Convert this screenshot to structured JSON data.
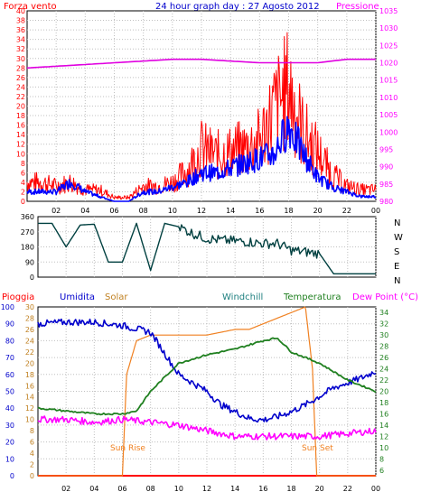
{
  "colors": {
    "wind": "#ff0000",
    "wind_gust_bg": "#ff0000",
    "wind_avg": "#0000ff",
    "pressure": "#e000e0",
    "direction": "#004040",
    "humidity": "#0000cc",
    "solar": "#f08020",
    "windchill": "#208020",
    "temperature": "#208020",
    "dewpoint": "#ff00ff",
    "rain": "#ff0000",
    "grid": "#c0c0c0",
    "frame": "#000000",
    "left_axis": "#ff0000",
    "right_axis_pressure": "#ff00ff",
    "right_axis_temp": "#208020",
    "title": "#0000cc"
  },
  "header": {
    "left": "Forza vento",
    "title": "24 hour graph day : 27 Agosto 2012",
    "right": "Pressione"
  },
  "panel_top_ticks_left": [
    "40",
    "38",
    "36",
    "34",
    "32",
    "30",
    "28",
    "26",
    "24",
    "22",
    "20",
    "18",
    "16",
    "14",
    "12",
    "10",
    "8",
    "6",
    "4",
    "2",
    "0"
  ],
  "panel_top_ticks_right": [
    "1035",
    "1030",
    "1025",
    "1020",
    "1015",
    "1010",
    "1005",
    "1000",
    "995",
    "990",
    "985",
    "980"
  ],
  "x_ticks": [
    "02",
    "04",
    "06",
    "08",
    "10",
    "12",
    "14",
    "16",
    "18",
    "20",
    "22",
    "00"
  ],
  "panel_dir_ticks": [
    "360",
    "270",
    "180",
    "90",
    "0"
  ],
  "panel_dir_labels": [
    "N",
    "W",
    "S",
    "E",
    "N"
  ],
  "legend_bottom": {
    "rain": "Pioggia",
    "humidity": "Umidita",
    "solar": "Solar",
    "windchill": "Windchill",
    "temperature": "Temperatura",
    "dewpoint": "Dew Point (°C)"
  },
  "panel_bottom_ticks_humidity": [
    "100",
    "90",
    "80",
    "70",
    "60",
    "50",
    "40",
    "30",
    "20",
    "10",
    "0"
  ],
  "panel_bottom_ticks_solar": [
    "30",
    "28",
    "26",
    "24",
    "22",
    "20",
    "18",
    "16",
    "14",
    "12",
    "10",
    "8",
    "6",
    "4",
    "2",
    "0"
  ],
  "panel_bottom_ticks_temp": [
    "34",
    "32",
    "30",
    "28",
    "26",
    "24",
    "22",
    "20",
    "18",
    "16",
    "14",
    "12",
    "10",
    "8",
    "6"
  ],
  "annotations": {
    "sunrise": "Sun Rise",
    "sunset": "Sun Set"
  },
  "chart_data": [
    {
      "type": "line",
      "title": "24 hour graph day : 27 Agosto 2012",
      "xlabel": "",
      "ylabel": "Forza vento",
      "x_ticks": [
        "02",
        "04",
        "06",
        "08",
        "10",
        "12",
        "14",
        "16",
        "18",
        "20",
        "22",
        "00"
      ],
      "ylim": [
        0,
        40
      ],
      "y2lim": [
        980,
        1035
      ],
      "series": [
        {
          "name": "Forza vento",
          "axis": "left",
          "x": [
            0,
            1,
            2,
            3,
            4,
            5,
            6,
            7,
            8,
            9,
            10,
            11,
            12,
            13,
            14,
            15,
            16,
            17,
            18,
            19,
            20,
            21,
            22,
            23,
            24
          ],
          "values": [
            5,
            5,
            4,
            5,
            3,
            3,
            1,
            1,
            4,
            4,
            5,
            8,
            14,
            12,
            13,
            14,
            16,
            24,
            30,
            18,
            13,
            7,
            4,
            3,
            3
          ]
        },
        {
          "name": "",
          "axis": "left",
          "x": [
            0,
            1,
            2,
            3,
            4,
            5,
            6,
            7,
            8,
            9,
            10,
            11,
            12,
            13,
            14,
            15,
            16,
            17,
            18,
            19,
            20,
            21,
            22,
            23,
            24
          ],
          "values": [
            2,
            2,
            2,
            4,
            2,
            1,
            0,
            0,
            2,
            2,
            3,
            4,
            6,
            6,
            7,
            8,
            9,
            10,
            16,
            10,
            5,
            3,
            2,
            1,
            1
          ]
        },
        {
          "name": "Pressione",
          "axis": "right",
          "x": [
            0,
            2,
            4,
            6,
            8,
            10,
            12,
            14,
            16,
            18,
            20,
            22,
            24
          ],
          "values": [
            1018.5,
            1019,
            1019.5,
            1020,
            1020.5,
            1021,
            1021,
            1020.5,
            1020,
            1020,
            1020,
            1021,
            1021
          ]
        }
      ]
    },
    {
      "type": "line",
      "title": "",
      "ylabel": "",
      "ylim": [
        0,
        360
      ],
      "y_tick_labels": [
        "360",
        "270",
        "180",
        "90",
        "0"
      ],
      "direction_labels": [
        "N",
        "W",
        "S",
        "E",
        "N"
      ],
      "series": [
        {
          "name": "",
          "x": [
            0,
            1,
            2,
            3,
            4,
            5,
            6,
            7,
            8,
            9,
            10,
            11,
            12,
            13,
            14,
            15,
            16,
            17,
            18,
            19,
            20,
            21,
            22,
            23,
            24
          ],
          "values": [
            320,
            320,
            180,
            310,
            315,
            90,
            90,
            320,
            40,
            320,
            300,
            260,
            230,
            220,
            215,
            210,
            200,
            200,
            160,
            150,
            140,
            20,
            20,
            20,
            20
          ]
        }
      ]
    },
    {
      "type": "line",
      "title": "",
      "ylabel": "Umidita",
      "ylim": [
        0,
        100
      ],
      "y_solar_lim": [
        0,
        30
      ],
      "y_temp_lim": [
        5,
        35
      ],
      "series": [
        {
          "name": "Umidita",
          "axis": "humidity",
          "x": [
            0,
            2,
            4,
            6,
            8,
            10,
            11,
            12,
            13,
            14,
            15,
            16,
            17,
            18,
            19,
            20,
            21,
            22,
            23,
            24
          ],
          "values": [
            90,
            91,
            91,
            89,
            85,
            60,
            55,
            50,
            42,
            38,
            34,
            33,
            35,
            38,
            42,
            47,
            52,
            55,
            58,
            62
          ]
        },
        {
          "name": "Solar",
          "axis": "solar",
          "x": [
            0,
            6,
            6.3,
            7,
            8,
            10,
            12,
            14,
            15,
            16,
            17,
            18,
            19,
            19.5,
            19.8,
            20,
            24
          ],
          "values": [
            0,
            0,
            18,
            24,
            25,
            25,
            25,
            26,
            26,
            27,
            28,
            29,
            30,
            19,
            0,
            0,
            0
          ]
        },
        {
          "name": "Temperatura",
          "axis": "temp",
          "x": [
            0,
            2,
            4,
            6,
            7,
            8,
            10,
            12,
            14,
            16,
            17,
            18,
            19,
            20,
            22,
            24
          ],
          "values": [
            17,
            16.5,
            16,
            16,
            16.5,
            20,
            25,
            26.5,
            27.5,
            29,
            29.5,
            27,
            26,
            25,
            22,
            20
          ]
        },
        {
          "name": "Dew Point (°C)",
          "axis": "temp",
          "x": [
            0,
            2,
            4,
            6,
            8,
            10,
            12,
            14,
            16,
            18,
            20,
            22,
            24
          ],
          "values": [
            15,
            15,
            14.5,
            15,
            14.5,
            14,
            13,
            12,
            12,
            12,
            12,
            12.5,
            13
          ]
        },
        {
          "name": "Pioggia",
          "axis": "humidity",
          "x": [
            0,
            24
          ],
          "values": [
            0,
            0
          ]
        }
      ]
    }
  ]
}
